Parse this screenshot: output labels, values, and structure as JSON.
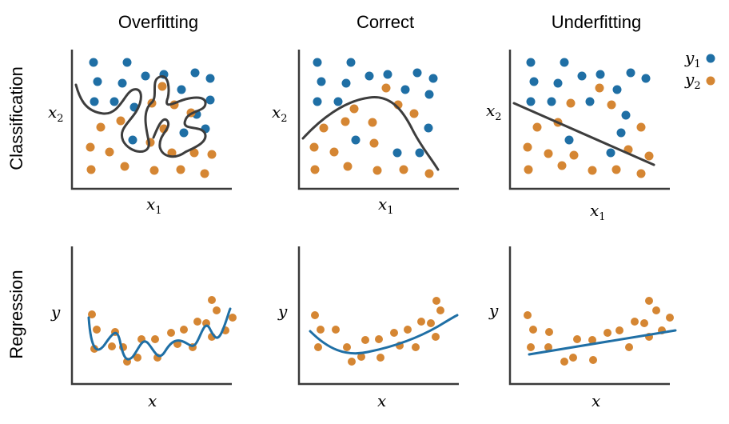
{
  "columns": [
    {
      "title": "Overfitting"
    },
    {
      "title": "Correct"
    },
    {
      "title": "Underfitting"
    }
  ],
  "rows": [
    {
      "title": "Classification"
    },
    {
      "title": "Regression"
    }
  ],
  "labels": {
    "x1": "x",
    "x1_sub": "1",
    "x2": "x",
    "x2_sub": "2",
    "y": "y",
    "x": "x"
  },
  "legend": {
    "y1": {
      "text": "y",
      "sub": "1"
    },
    "y2": {
      "text": "y",
      "sub": "2"
    }
  },
  "colors": {
    "y1": "#1f6fa5",
    "y2": "#d58633",
    "boundary": "#3d3d3d",
    "fit": "#1f6fa5"
  }
}
